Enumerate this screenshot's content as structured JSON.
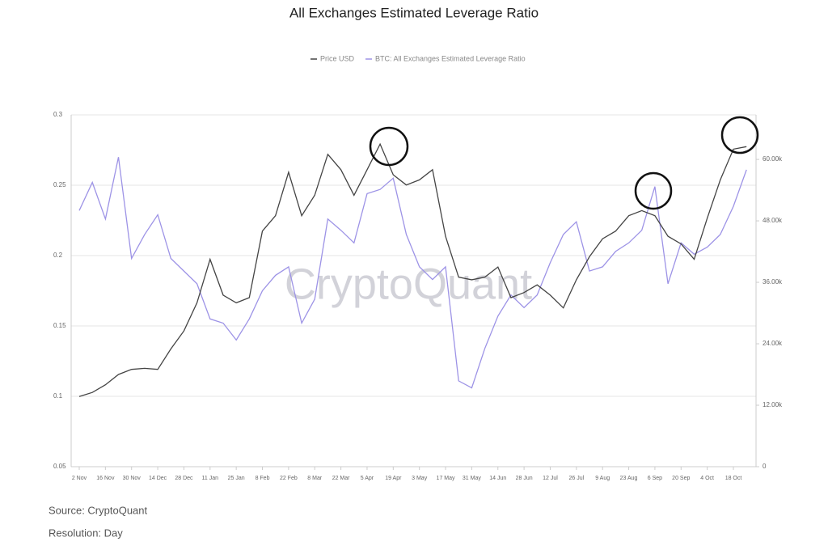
{
  "chart_data": {
    "type": "line",
    "title": "All Exchanges Estimated Leverage Ratio",
    "watermark": "CryptoQuant",
    "source": "Source: CryptoQuant",
    "resolution": "Resolution: Day",
    "categories": [
      "2 Nov",
      null,
      "16 Nov",
      null,
      "30 Nov",
      null,
      "14 Dec",
      null,
      "28 Dec",
      null,
      "11 Jan",
      null,
      "25 Jan",
      null,
      "8 Feb",
      null,
      "22 Feb",
      null,
      "8 Mar",
      null,
      "22 Mar",
      null,
      "5 Apr",
      null,
      "19 Apr",
      null,
      "3 May",
      null,
      "17 May",
      null,
      "31 May",
      null,
      "14 Jun",
      null,
      "28 Jun",
      null,
      "12 Jul",
      null,
      "26 Jul",
      null,
      "9 Aug",
      null,
      "23 Aug",
      null,
      "6 Sep",
      null,
      "20 Sep",
      null,
      "4 Oct",
      null,
      "18 Oct",
      null
    ],
    "series": [
      {
        "name": "Price USD",
        "color": "#444444",
        "axis": "y2",
        "values": [
          13700,
          14500,
          16000,
          18000,
          19000,
          19200,
          19000,
          23000,
          26500,
          32000,
          40500,
          33500,
          32000,
          33000,
          46000,
          49000,
          57500,
          49000,
          53000,
          61000,
          58000,
          53000,
          58000,
          63000,
          57000,
          55000,
          56000,
          58000,
          45000,
          37000,
          36500,
          37000,
          39000,
          33000,
          34000,
          35500,
          33500,
          31000,
          36500,
          41000,
          44500,
          46000,
          49000,
          50000,
          49000,
          45000,
          43500,
          40500,
          48500,
          56000,
          62000,
          62500
        ]
      },
      {
        "name": "BTC: All Exchanges Estimated Leverage Ratio",
        "color": "#9d93e6",
        "values": [
          0.232,
          0.252,
          0.226,
          0.27,
          0.198,
          0.215,
          0.229,
          0.198,
          0.189,
          0.18,
          0.155,
          0.152,
          0.14,
          0.155,
          0.175,
          0.186,
          0.192,
          0.152,
          0.169,
          0.226,
          0.218,
          0.209,
          0.244,
          0.247,
          0.255,
          0.215,
          0.192,
          0.183,
          0.192,
          0.111,
          0.106,
          0.134,
          0.157,
          0.172,
          0.163,
          0.172,
          0.195,
          0.215,
          0.224,
          0.189,
          0.192,
          0.203,
          0.209,
          0.218,
          0.249,
          0.18,
          0.209,
          0.201,
          0.206,
          0.215,
          0.235,
          0.261
        ]
      }
    ],
    "ylim": [
      0.05,
      0.3
    ],
    "yticks": [
      0.05,
      0.1,
      0.15,
      0.2,
      0.25,
      0.3
    ],
    "y2lim": [
      0,
      68700
    ],
    "y2ticks": [
      0,
      {
        "value": 12000,
        "label": "12.00k"
      },
      {
        "value": 24000,
        "label": "24.00k"
      },
      {
        "value": 36000,
        "label": "36.00k"
      },
      {
        "value": 48000,
        "label": "48.00k"
      },
      {
        "value": 60000,
        "label": "60.00k"
      }
    ],
    "grid": true,
    "legend": "top"
  }
}
